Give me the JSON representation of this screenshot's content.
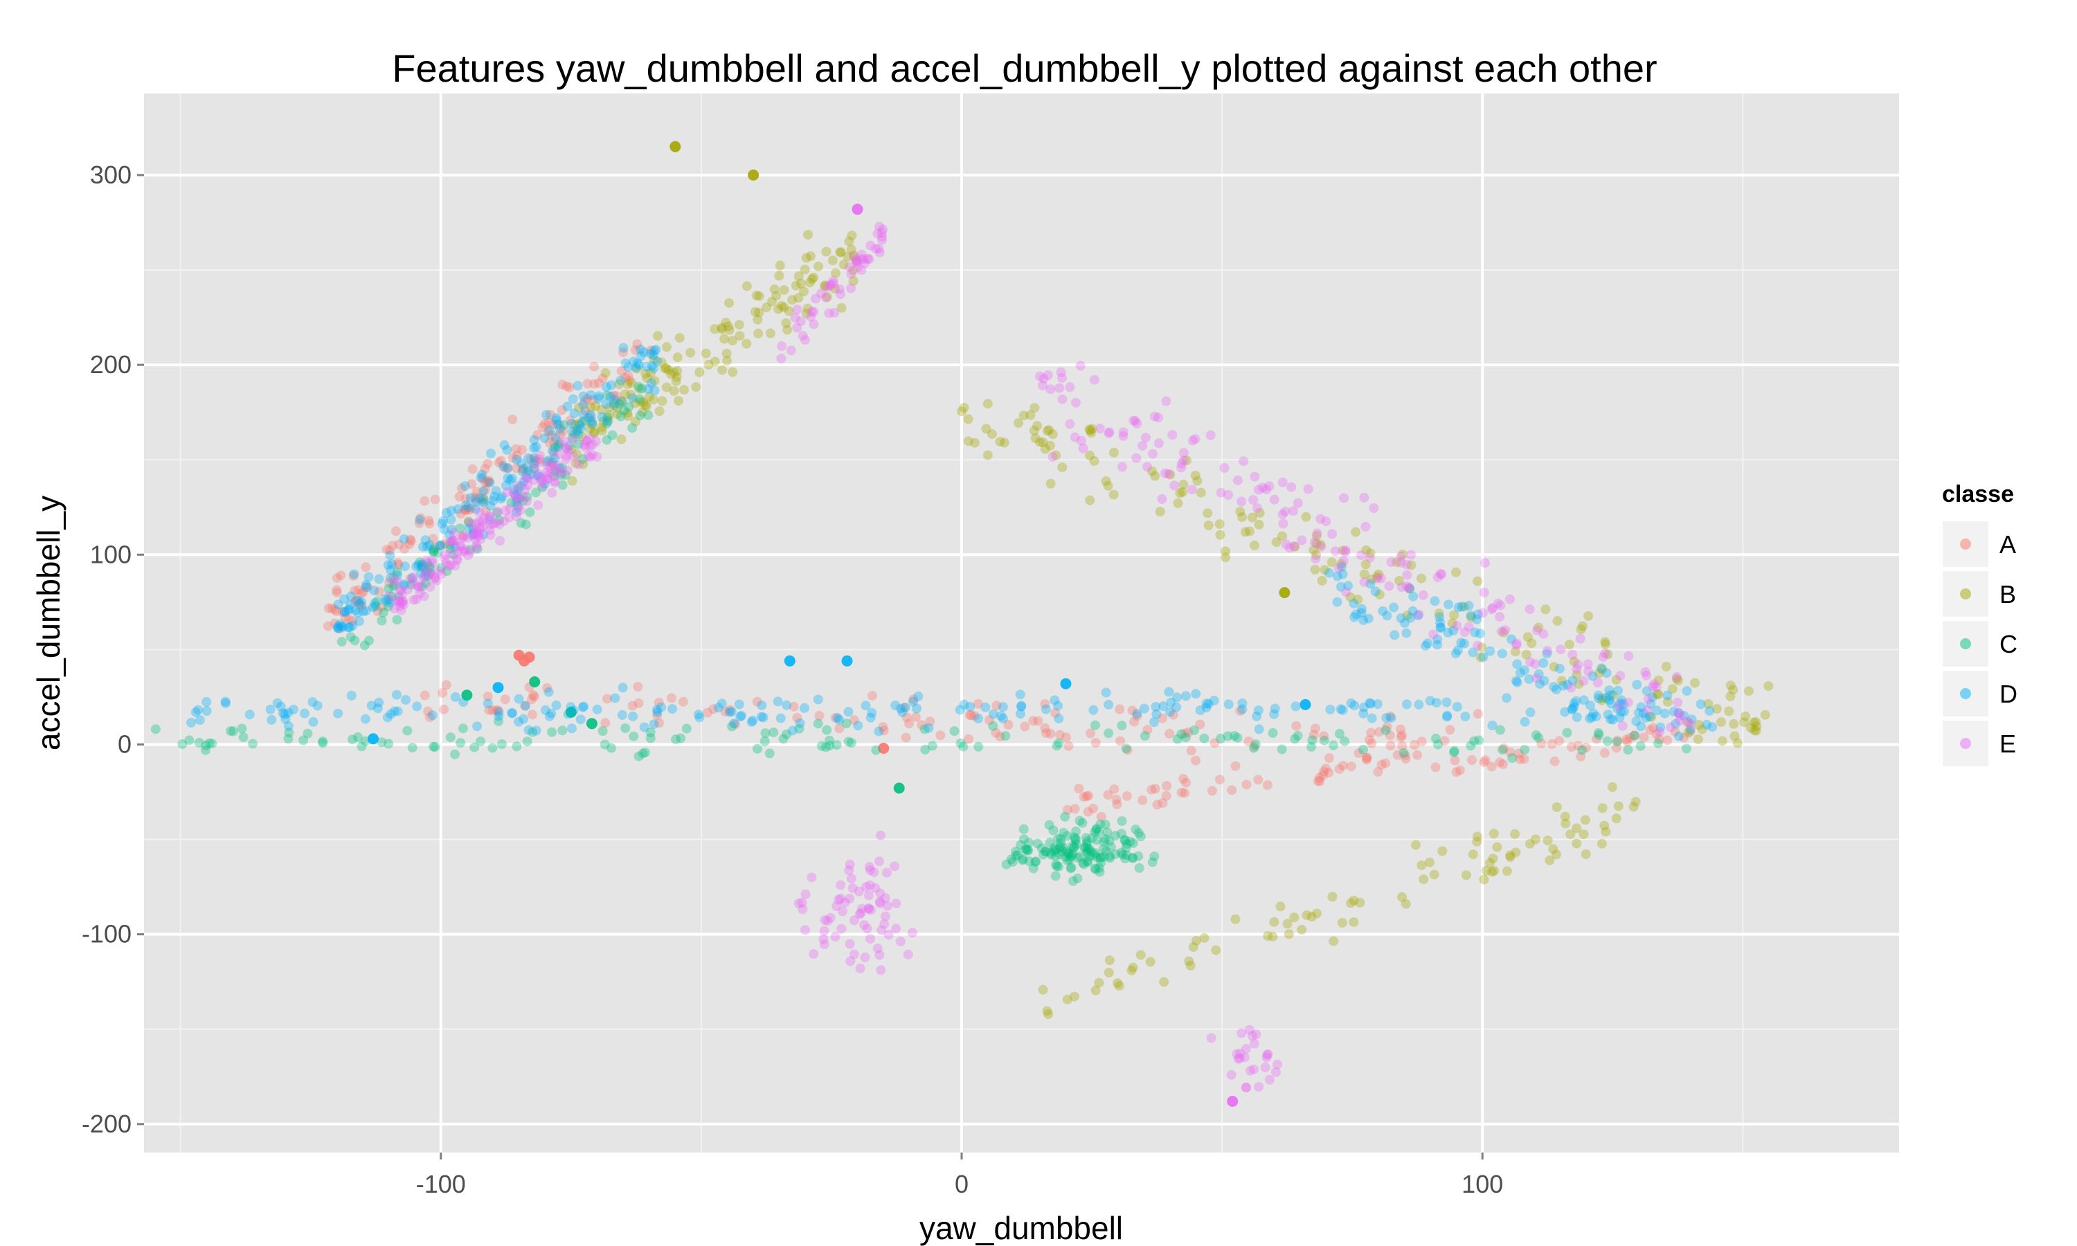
{
  "chart_data": {
    "type": "scatter",
    "title": "Features  yaw_dumbbell  and  accel_dumbbell_y  plotted against each other",
    "xlabel": "yaw_dumbbell",
    "ylabel": "accel_dumbbell_y",
    "xlim": [
      -157,
      180
    ],
    "ylim": [
      -215,
      343
    ],
    "x_ticks": [
      -100,
      0,
      100
    ],
    "x_tick_labels": [
      "-100",
      "0",
      "100"
    ],
    "y_ticks": [
      -200,
      -100,
      0,
      100,
      200,
      300
    ],
    "y_tick_labels": [
      "-200",
      "-100",
      "0",
      "100",
      "200",
      "300"
    ],
    "grid": true,
    "legend": {
      "title": "classe",
      "position": "right"
    },
    "series": [
      {
        "name": "A",
        "color": "#F8766D",
        "clusters": [
          {
            "type": "band",
            "x": [
              -122,
              -58
            ],
            "y": [
              60,
              215
            ],
            "slope": 2.35,
            "count": 140
          },
          {
            "type": "band",
            "x": [
              -105,
              100
            ],
            "y": [
              -35,
              60
            ],
            "slope": -0.1,
            "count": 120
          },
          {
            "type": "band",
            "x": [
              20,
              140
            ],
            "y": [
              -45,
              20
            ],
            "slope": 0.3,
            "count": 90
          }
        ],
        "points": [
          [
            -85,
            47
          ],
          [
            -84,
            44
          ],
          [
            -15,
            -2
          ],
          [
            -83,
            46
          ]
        ]
      },
      {
        "name": "B",
        "color": "#A3A500",
        "clusters": [
          {
            "type": "band",
            "x": [
              -75,
              -20
            ],
            "y": [
              120,
              300
            ],
            "slope": 1.8,
            "count": 150
          },
          {
            "type": "band",
            "x": [
              0,
              155
            ],
            "y": [
              0,
              180
            ],
            "slope": -1.1,
            "count": 170
          },
          {
            "type": "band",
            "x": [
              15,
              130
            ],
            "y": [
              -150,
              -20
            ],
            "slope": 0.9,
            "count": 90
          }
        ],
        "points": [
          [
            -55,
            315
          ],
          [
            -40,
            300
          ],
          [
            62,
            80
          ]
        ]
      },
      {
        "name": "C",
        "color": "#00BF7D",
        "clusters": [
          {
            "type": "band",
            "x": [
              -120,
              -60
            ],
            "y": [
              50,
              190
            ],
            "slope": 2.3,
            "count": 90
          },
          {
            "type": "blob",
            "x": [
              5,
              40
            ],
            "y": [
              -75,
              -35
            ],
            "count": 140
          },
          {
            "type": "band",
            "x": [
              -155,
              140
            ],
            "y": [
              -35,
              40
            ],
            "slope": 0.0,
            "count": 140
          }
        ],
        "points": [
          [
            -95,
            26
          ],
          [
            -82,
            33
          ],
          [
            -75,
            17
          ],
          [
            -71,
            11
          ],
          [
            -12,
            -23
          ]
        ]
      },
      {
        "name": "D",
        "color": "#00B0F6",
        "clusters": [
          {
            "type": "band",
            "x": [
              -120,
              -58
            ],
            "y": [
              60,
              210
            ],
            "slope": 2.35,
            "count": 190
          },
          {
            "type": "band",
            "x": [
              -150,
              145
            ],
            "y": [
              -20,
              55
            ],
            "slope": 0.0,
            "count": 210
          },
          {
            "type": "band",
            "x": [
              70,
              145
            ],
            "y": [
              -25,
              115
            ],
            "slope": -1.2,
            "count": 110
          }
        ],
        "points": [
          [
            -113,
            3
          ],
          [
            -89,
            30
          ],
          [
            -22,
            44
          ],
          [
            -33,
            44
          ],
          [
            20,
            32
          ],
          [
            66,
            21
          ]
        ]
      },
      {
        "name": "E",
        "color": "#E76BF3",
        "clusters": [
          {
            "type": "band",
            "x": [
              -110,
              -70
            ],
            "y": [
              70,
              165
            ],
            "slope": 2.4,
            "count": 160
          },
          {
            "type": "band",
            "x": [
              -35,
              -15
            ],
            "y": [
              190,
              285
            ],
            "slope": 3.0,
            "count": 50
          },
          {
            "type": "band",
            "x": [
              15,
              140
            ],
            "y": [
              0,
              200
            ],
            "slope": -1.4,
            "count": 170
          },
          {
            "type": "blob",
            "x": [
              -35,
              -5
            ],
            "y": [
              -130,
              -40
            ],
            "count": 70
          },
          {
            "type": "blob",
            "x": [
              45,
              65
            ],
            "y": [
              -190,
              -140
            ],
            "count": 25
          }
        ],
        "points": [
          [
            -20,
            282
          ],
          [
            52,
            -188
          ]
        ]
      }
    ]
  }
}
